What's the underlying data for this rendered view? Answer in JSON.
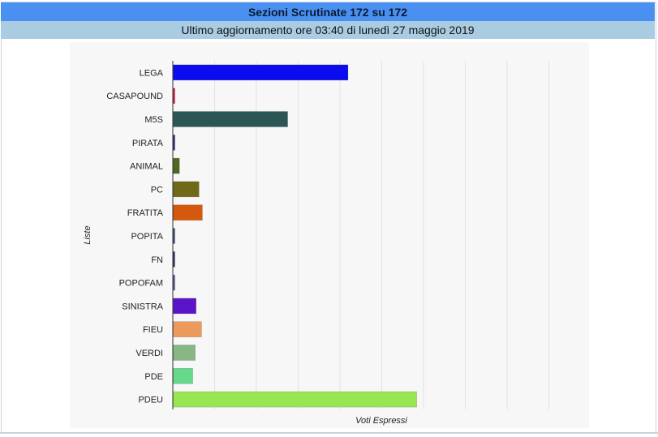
{
  "header": {
    "title": "Sezioni Scrutinate 172 su 172",
    "subtitle": "Ultimo aggiornamento ore 03:40 di lunedì 27 maggio 2019"
  },
  "colors": {
    "title_bg": "#4a90f0",
    "subtitle_bg": "#a9cce3"
  },
  "chart_data": {
    "type": "bar",
    "orientation": "horizontal",
    "ylabel": "Liste",
    "xlabel": "Voti Espressi",
    "grid": true,
    "xlim": [
      0,
      1000
    ],
    "categories": [
      "LEGA",
      "CASAPOUND",
      "M5S",
      "PIRATA",
      "ANIMAL",
      "PC",
      "FRATITA",
      "POPITA",
      "FN",
      "POPOFAM",
      "SINISTRA",
      "FIEU",
      "VERDI",
      "PDE",
      "PDEU"
    ],
    "values": [
      420,
      4,
      275,
      4,
      15,
      62,
      70,
      3,
      2,
      4,
      55,
      68,
      53,
      47,
      585
    ],
    "colors": [
      "#0b0bf0",
      "#e0103a",
      "#2c5656",
      "#2e2a6e",
      "#4d6b1f",
      "#6f6a18",
      "#d4590c",
      "#3a4a70",
      "#2a2a60",
      "#55558a",
      "#5b14c8",
      "#eb9a5c",
      "#86b784",
      "#66d98a",
      "#98e652"
    ]
  }
}
